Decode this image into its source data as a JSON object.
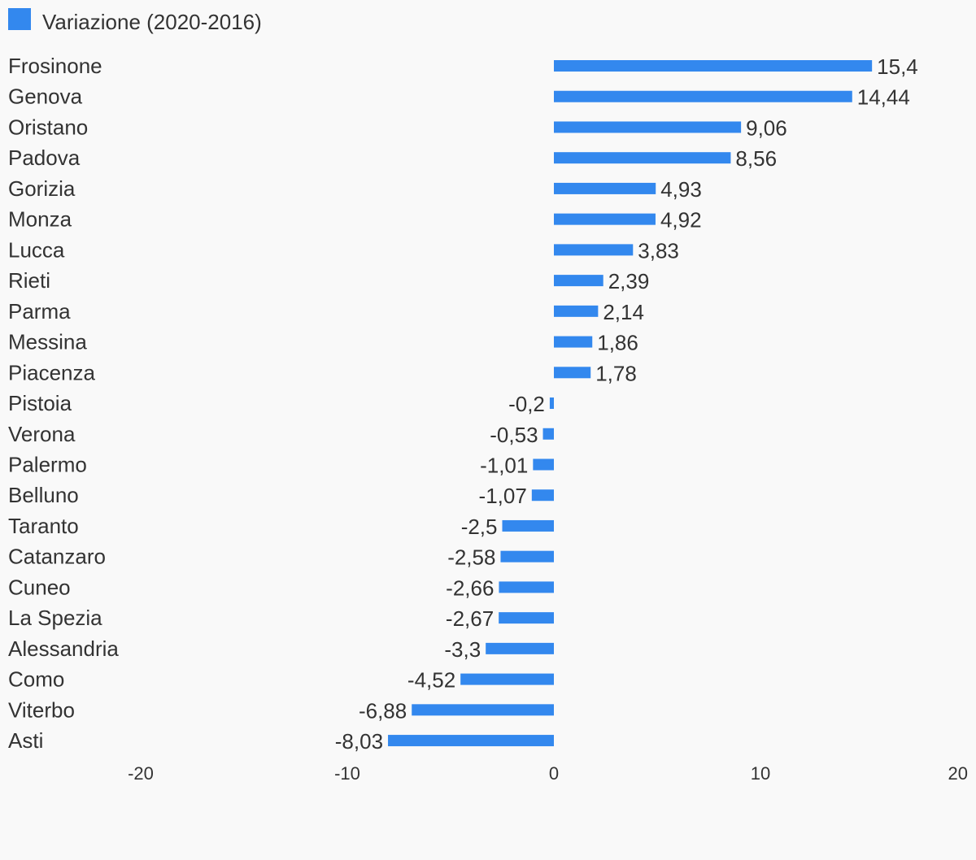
{
  "chart_data": {
    "type": "bar",
    "orientation": "horizontal",
    "title": "",
    "xlabel": "",
    "ylabel": "",
    "categories": [
      "Frosinone",
      "Genova",
      "Oristano",
      "Padova",
      "Gorizia",
      "Monza",
      "Lucca",
      "Rieti",
      "Parma",
      "Messina",
      "Piacenza",
      "Pistoia",
      "Verona",
      "Palermo",
      "Belluno",
      "Taranto",
      "Catanzaro",
      "Cuneo",
      "La Spezia",
      "Alessandria",
      "Como",
      "Viterbo",
      "Asti"
    ],
    "series": [
      {
        "name": "Variazione (2020-2016)",
        "color": "#3388ee",
        "values": [
          15.4,
          14.44,
          9.06,
          8.56,
          4.93,
          4.92,
          3.83,
          2.39,
          2.14,
          1.86,
          1.78,
          -0.2,
          -0.53,
          -1.01,
          -1.07,
          -2.5,
          -2.58,
          -2.66,
          -2.67,
          -3.3,
          -4.52,
          -6.88,
          -8.03
        ],
        "value_labels": [
          "15,4",
          "14,44",
          "9,06",
          "8,56",
          "4,93",
          "4,92",
          "3,83",
          "2,39",
          "2,14",
          "1,86",
          "1,78",
          "-0,2",
          "-0,53",
          "-1,01",
          "-1,07",
          "-2,5",
          "-2,58",
          "-2,66",
          "-2,67",
          "-3,3",
          "-4,52",
          "-6,88",
          "-8,03"
        ]
      }
    ],
    "xlim": [
      -20,
      20
    ],
    "x_ticks": [
      -20,
      -10,
      0,
      10,
      20
    ],
    "x_tick_labels": [
      "-20",
      "-10",
      "0",
      "10",
      "20"
    ],
    "grid": false,
    "legend_position": "top-left"
  }
}
